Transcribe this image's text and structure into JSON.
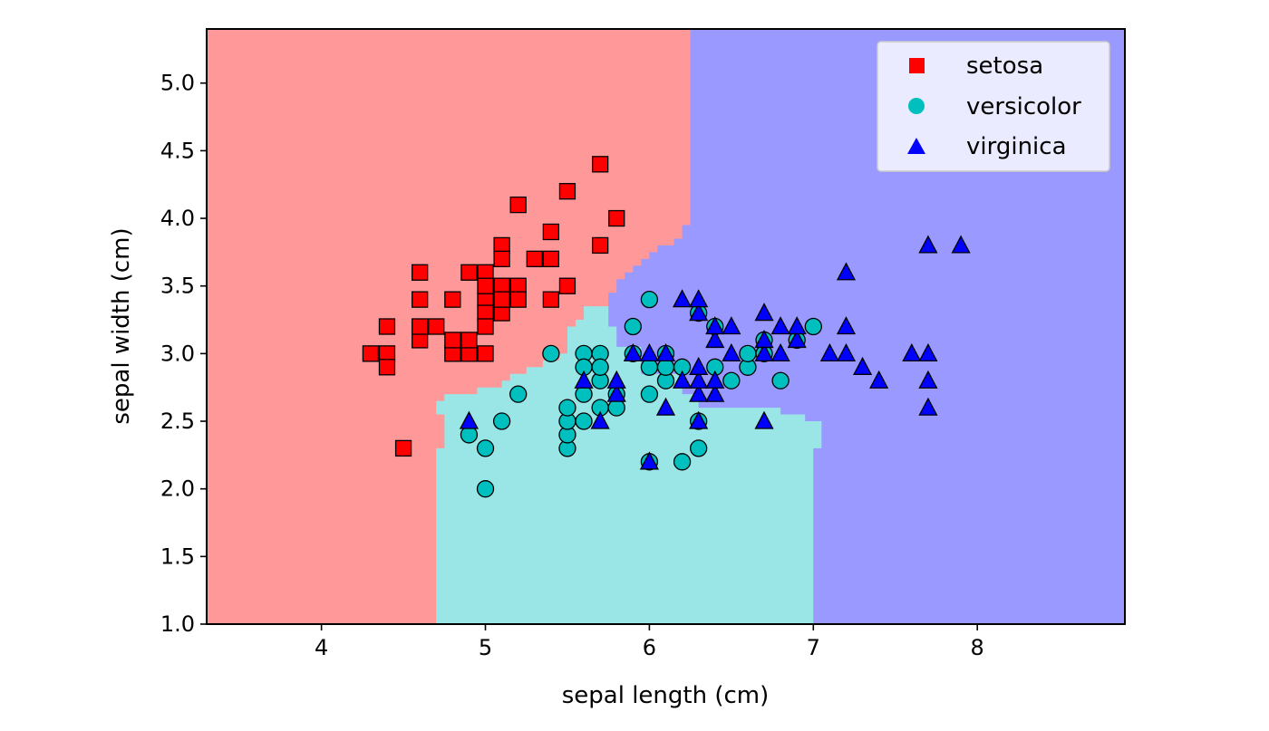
{
  "chart_data": {
    "type": "scatter",
    "title": "",
    "xlabel": "sepal length (cm)",
    "ylabel": "sepal width (cm)",
    "xlim": [
      3.3,
      8.9
    ],
    "ylim": [
      1.0,
      5.4
    ],
    "xticks": [
      "4",
      "5",
      "6",
      "7",
      "8"
    ],
    "yticks": [
      "1.0",
      "1.5",
      "2.0",
      "2.5",
      "3.0",
      "3.5",
      "4.0",
      "4.5",
      "5.0"
    ],
    "grid": false,
    "legend_position": "top-right",
    "background_regions": [
      {
        "class": "setosa",
        "color": "#ff9999"
      },
      {
        "class": "versicolor",
        "color": "#9ae5e5"
      },
      {
        "class": "virginica",
        "color": "#9999ff"
      }
    ],
    "series": [
      {
        "name": "setosa",
        "marker": "square",
        "color": "#ff0000",
        "points": [
          [
            4.3,
            3.0
          ],
          [
            4.4,
            3.0
          ],
          [
            4.4,
            2.9
          ],
          [
            4.4,
            3.2
          ],
          [
            4.5,
            2.3
          ],
          [
            4.6,
            3.1
          ],
          [
            4.6,
            3.4
          ],
          [
            4.6,
            3.6
          ],
          [
            4.6,
            3.2
          ],
          [
            4.7,
            3.2
          ],
          [
            4.8,
            3.4
          ],
          [
            4.8,
            3.0
          ],
          [
            4.8,
            3.1
          ],
          [
            4.9,
            3.0
          ],
          [
            4.9,
            3.1
          ],
          [
            4.9,
            3.6
          ],
          [
            5.0,
            3.6
          ],
          [
            5.0,
            3.4
          ],
          [
            5.0,
            3.0
          ],
          [
            5.0,
            3.3
          ],
          [
            5.0,
            3.5
          ],
          [
            5.0,
            3.2
          ],
          [
            5.1,
            3.5
          ],
          [
            5.1,
            3.8
          ],
          [
            5.1,
            3.7
          ],
          [
            5.1,
            3.3
          ],
          [
            5.1,
            3.4
          ],
          [
            5.2,
            3.5
          ],
          [
            5.2,
            3.4
          ],
          [
            5.2,
            4.1
          ],
          [
            5.3,
            3.7
          ],
          [
            5.4,
            3.9
          ],
          [
            5.4,
            3.7
          ],
          [
            5.4,
            3.4
          ],
          [
            5.5,
            4.2
          ],
          [
            5.5,
            3.5
          ],
          [
            5.7,
            4.4
          ],
          [
            5.7,
            3.8
          ],
          [
            5.8,
            4.0
          ]
        ]
      },
      {
        "name": "versicolor",
        "marker": "circle",
        "color": "#00bfbf",
        "points": [
          [
            4.9,
            2.4
          ],
          [
            5.0,
            2.3
          ],
          [
            5.0,
            2.0
          ],
          [
            5.1,
            2.5
          ],
          [
            5.2,
            2.7
          ],
          [
            5.4,
            3.0
          ],
          [
            5.5,
            2.3
          ],
          [
            5.5,
            2.4
          ],
          [
            5.5,
            2.5
          ],
          [
            5.5,
            2.6
          ],
          [
            5.6,
            3.0
          ],
          [
            5.6,
            2.9
          ],
          [
            5.6,
            2.7
          ],
          [
            5.6,
            2.5
          ],
          [
            5.7,
            2.8
          ],
          [
            5.7,
            2.6
          ],
          [
            5.7,
            3.0
          ],
          [
            5.7,
            2.9
          ],
          [
            5.8,
            2.7
          ],
          [
            5.8,
            2.6
          ],
          [
            5.9,
            3.0
          ],
          [
            5.9,
            3.2
          ],
          [
            6.0,
            2.2
          ],
          [
            6.0,
            2.7
          ],
          [
            6.0,
            2.9
          ],
          [
            6.0,
            3.4
          ],
          [
            6.1,
            2.8
          ],
          [
            6.1,
            3.0
          ],
          [
            6.1,
            2.9
          ],
          [
            6.2,
            2.2
          ],
          [
            6.2,
            2.9
          ],
          [
            6.3,
            2.3
          ],
          [
            6.3,
            2.5
          ],
          [
            6.3,
            3.3
          ],
          [
            6.4,
            2.9
          ],
          [
            6.4,
            3.2
          ],
          [
            6.5,
            2.8
          ],
          [
            6.6,
            2.9
          ],
          [
            6.6,
            3.0
          ],
          [
            6.7,
            3.0
          ],
          [
            6.7,
            3.1
          ],
          [
            6.8,
            2.8
          ],
          [
            6.9,
            3.1
          ],
          [
            7.0,
            3.2
          ]
        ]
      },
      {
        "name": "virginica",
        "marker": "triangle",
        "color": "#0000ff",
        "points": [
          [
            4.9,
            2.5
          ],
          [
            5.6,
            2.8
          ],
          [
            5.7,
            2.5
          ],
          [
            5.8,
            2.7
          ],
          [
            5.8,
            2.8
          ],
          [
            5.9,
            3.0
          ],
          [
            6.0,
            2.2
          ],
          [
            6.0,
            3.0
          ],
          [
            6.1,
            2.6
          ],
          [
            6.1,
            3.0
          ],
          [
            6.2,
            2.8
          ],
          [
            6.2,
            3.4
          ],
          [
            6.3,
            2.5
          ],
          [
            6.3,
            2.7
          ],
          [
            6.3,
            2.8
          ],
          [
            6.3,
            2.9
          ],
          [
            6.3,
            3.3
          ],
          [
            6.3,
            3.4
          ],
          [
            6.4,
            2.7
          ],
          [
            6.4,
            2.8
          ],
          [
            6.4,
            3.1
          ],
          [
            6.4,
            3.2
          ],
          [
            6.5,
            3.0
          ],
          [
            6.5,
            3.2
          ],
          [
            6.7,
            2.5
          ],
          [
            6.7,
            3.0
          ],
          [
            6.7,
            3.1
          ],
          [
            6.7,
            3.3
          ],
          [
            6.8,
            3.0
          ],
          [
            6.8,
            3.2
          ],
          [
            6.9,
            3.1
          ],
          [
            6.9,
            3.2
          ],
          [
            7.1,
            3.0
          ],
          [
            7.2,
            3.0
          ],
          [
            7.2,
            3.2
          ],
          [
            7.2,
            3.6
          ],
          [
            7.3,
            2.9
          ],
          [
            7.4,
            2.8
          ],
          [
            7.6,
            3.0
          ],
          [
            7.7,
            2.6
          ],
          [
            7.7,
            2.8
          ],
          [
            7.7,
            3.0
          ],
          [
            7.7,
            3.8
          ],
          [
            7.9,
            3.8
          ]
        ]
      }
    ]
  }
}
